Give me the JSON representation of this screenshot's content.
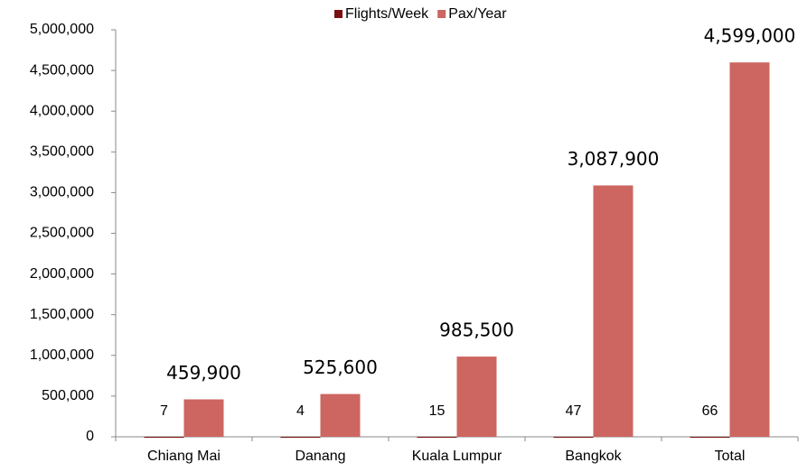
{
  "chart_data": {
    "type": "bar",
    "categories": [
      "Chiang Mai",
      "Danang",
      "Kuala Lumpur",
      "Bangkok",
      "Total"
    ],
    "series": [
      {
        "name": "Flights/Week",
        "color": "#7b1010",
        "values": [
          7,
          4,
          15,
          47,
          66
        ]
      },
      {
        "name": "Pax/Year",
        "color": "#cd6660",
        "values": [
          459900,
          525600,
          985500,
          3087900,
          4599000
        ],
        "value_labels": [
          "459,900",
          "525,600",
          "985,500",
          "3,087,900",
          "4,599,000"
        ]
      }
    ],
    "ylim": [
      0,
      5000000
    ],
    "yticks": [
      0,
      {
        "value": 500000,
        "label": "500,000"
      },
      {
        "value": 1000000,
        "label": "1,000,000"
      },
      {
        "value": 1500000,
        "label": "1,500,000"
      },
      {
        "value": 2000000,
        "label": "2,000,000"
      },
      {
        "value": 2500000,
        "label": "2,500,000"
      },
      {
        "value": 3000000,
        "label": "3,000,000"
      },
      {
        "value": 3500000,
        "label": "3,500,000"
      },
      {
        "value": 4000000,
        "label": "4,000,000"
      },
      {
        "value": 4500000,
        "label": "4,500,000"
      },
      {
        "value": 5000000,
        "label": "5,000,000"
      }
    ],
    "legend": "top",
    "grid": false
  }
}
